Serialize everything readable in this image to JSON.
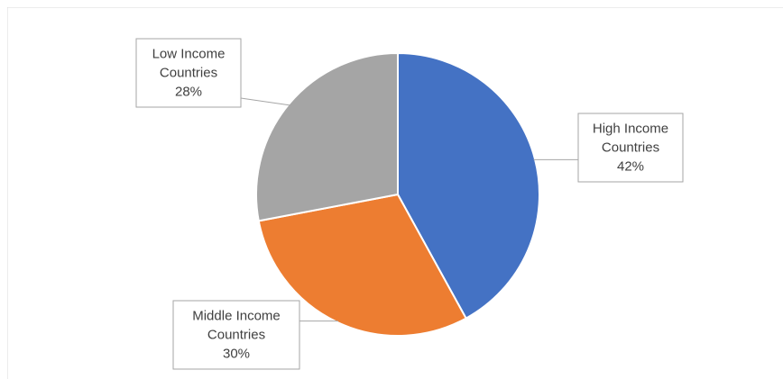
{
  "chart_data": {
    "type": "pie",
    "title": "",
    "legend": "none",
    "slices": [
      {
        "name": "High Income Countries",
        "label_lines": [
          "High Income",
          "Countries"
        ],
        "value": 42,
        "display": "42%",
        "color": "#4472c4"
      },
      {
        "name": "Middle Income Countries",
        "label_lines": [
          "Middle Income",
          "Countries"
        ],
        "value": 30,
        "display": "30%",
        "color": "#ed7d31"
      },
      {
        "name": "Low Income Countries",
        "label_lines": [
          "Low Income",
          "Countries"
        ],
        "value": 28,
        "display": "28%",
        "color": "#a5a5a5"
      }
    ]
  }
}
